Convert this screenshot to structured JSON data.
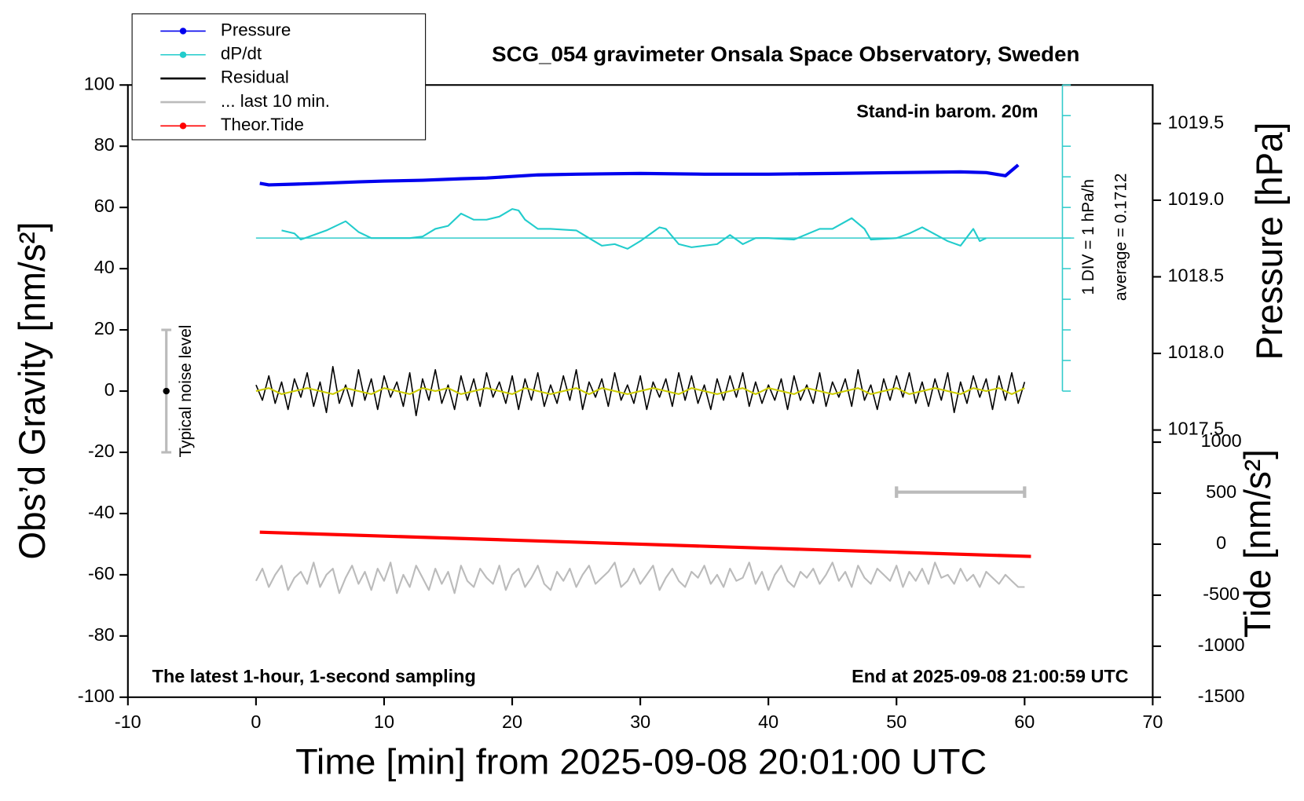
{
  "chart_data": {
    "type": "line",
    "title": "SCG_054 gravimeter Onsala Space Observatory, Sweden",
    "xlabel": "Time [min] from 2025-09-08 20:01:00 UTC",
    "ylabel": "Obs’d Gravity [nm/s²]",
    "y2label": "Pressure [hPa]",
    "y3label": "Tide [nm/s²]",
    "annotations": [
      "Stand-in barom. 20m",
      "1 DIV = 1 hPa/h",
      "average = 0.1712",
      "The latest 1-hour, 1-second sampling",
      "End at 2025-09-08 21:00:59 UTC"
    ],
    "xlim": [
      -10,
      70
    ],
    "xticks": [
      -10,
      0,
      10,
      20,
      30,
      40,
      50,
      60,
      70
    ],
    "ylim": [
      -100,
      100
    ],
    "yticks": [
      -100,
      -80,
      -60,
      -40,
      -20,
      0,
      20,
      40,
      60,
      80,
      100
    ],
    "y2lim": [
      1015.756,
      1019.752
    ],
    "y2ticks": [
      1017.5,
      {
        "value": 1018,
        "label": "1018.0"
      },
      1018.5,
      {
        "value": 1019,
        "label": "1019.0"
      },
      1019.5
    ],
    "y3lim": [
      -1500,
      4501
    ],
    "y3ticks": [
      -1500,
      -1000,
      -500,
      0,
      500,
      1000
    ],
    "y4lim": [
      -5,
      5
    ],
    "y4ticks": [
      -5,
      -4,
      -3,
      -2,
      -1,
      0,
      1,
      2,
      3,
      4,
      5
    ],
    "y4color": "#33cccc",
    "noise_bar": {
      "label": "Typical noise level",
      "x": -7,
      "value": 0,
      "error": 20,
      "color": "#bbbbbb"
    },
    "scale_bar": {
      "x": [
        50,
        60
      ],
      "value": -33,
      "color": "#bbbbbb"
    },
    "x": [
      0,
      0.5,
      1,
      1.5,
      2,
      2.5,
      3,
      3.5,
      4,
      4.5,
      5,
      5.5,
      6,
      6.5,
      7,
      7.5,
      8,
      8.5,
      9,
      9.5,
      10,
      10.5,
      11,
      11.5,
      12,
      12.5,
      13,
      13.5,
      14,
      14.5,
      15,
      15.5,
      16,
      16.5,
      17,
      17.5,
      18,
      18.5,
      19,
      19.5,
      20,
      20.5,
      21,
      21.5,
      22,
      22.5,
      23,
      23.5,
      24,
      24.5,
      25,
      25.5,
      26,
      26.5,
      27,
      27.5,
      28,
      28.5,
      29,
      29.5,
      30,
      30.5,
      31,
      31.5,
      32,
      32.5,
      33,
      33.5,
      34,
      34.5,
      35,
      35.5,
      36,
      36.5,
      37,
      37.5,
      38,
      38.5,
      39,
      39.5,
      40,
      40.5,
      41,
      41.5,
      42,
      42.5,
      43,
      43.5,
      44,
      44.5,
      45,
      45.5,
      46,
      46.5,
      47,
      47.5,
      48,
      48.5,
      49,
      49.5,
      50,
      50.5,
      51,
      51.5,
      52,
      52.5,
      53,
      53.5,
      54,
      54.5,
      55,
      55.5,
      56,
      56.5,
      57,
      57.5,
      58,
      58.5,
      59,
      59.5,
      60
    ],
    "series": [
      {
        "name": "Pressure",
        "color": "#0000ee",
        "axis": "y2",
        "width": 4,
        "marker": true,
        "x": [
          0.3,
          1,
          3,
          5,
          8,
          10,
          13,
          16,
          18,
          20,
          22,
          25,
          30,
          35,
          40,
          45,
          50,
          55,
          57,
          58.5,
          59.5
        ],
        "values": [
          1019.11,
          1019.1,
          1019.105,
          1019.11,
          1019.12,
          1019.125,
          1019.13,
          1019.14,
          1019.145,
          1019.155,
          1019.165,
          1019.17,
          1019.175,
          1019.17,
          1019.17,
          1019.175,
          1019.18,
          1019.185,
          1019.18,
          1019.16,
          1019.23
        ]
      },
      {
        "name": "dP/dt",
        "color": "#22cccc",
        "axis": "y4",
        "width": 2,
        "marker": true,
        "x": [
          2,
          3,
          3.5,
          4.5,
          5.5,
          7,
          8,
          9,
          10,
          12,
          13,
          14,
          15,
          16,
          17,
          18,
          19,
          20,
          20.5,
          21,
          22,
          23,
          25,
          26,
          27,
          28,
          29,
          30,
          31,
          31.5,
          32,
          33,
          34,
          35,
          36,
          37,
          38,
          39,
          40,
          42,
          44,
          45,
          46.5,
          47.5,
          48,
          50,
          51,
          52,
          54,
          55,
          56,
          56.5,
          57
        ],
        "values": [
          0.25,
          0.15,
          -0.05,
          0.1,
          0.25,
          0.55,
          0.2,
          0,
          0,
          0,
          0.05,
          0.3,
          0.4,
          0.8,
          0.6,
          0.6,
          0.7,
          0.95,
          0.9,
          0.6,
          0.3,
          0.3,
          0.25,
          0,
          -0.25,
          -0.2,
          -0.35,
          -0.1,
          0.2,
          0.35,
          0.3,
          -0.2,
          -0.3,
          -0.25,
          -0.2,
          0.1,
          -0.2,
          0,
          0,
          -0.05,
          0.3,
          0.3,
          0.65,
          0.3,
          -0.05,
          0,
          0.15,
          0.35,
          -0.1,
          -0.25,
          0.3,
          -0.1,
          0
        ]
      },
      {
        "name": "Residual",
        "color": "#000000",
        "axis": "y",
        "width": 1.5,
        "values": [
          2,
          -3,
          5,
          -4,
          3,
          -6,
          4,
          -2,
          6,
          -5,
          3,
          -7,
          8,
          -4,
          2,
          -5,
          7,
          -3,
          4,
          -6,
          5,
          -2,
          3,
          -5,
          6,
          -8,
          4,
          -3,
          7,
          -4,
          2,
          -6,
          5,
          -3,
          4,
          -5,
          6,
          -2,
          3,
          -4,
          5,
          -6,
          4,
          -3,
          6,
          -5,
          2,
          -4,
          5,
          -3,
          7,
          -6,
          3,
          -2,
          4,
          -5,
          6,
          -3,
          2,
          -4,
          5,
          -6,
          3,
          -2,
          4,
          -5,
          6,
          -3,
          5,
          -4,
          2,
          -6,
          4,
          -3,
          5,
          -2,
          6,
          -5,
          3,
          -4,
          2,
          -3,
          4,
          -6,
          5,
          -3,
          2,
          -4,
          6,
          -5,
          3,
          -2,
          4,
          -5,
          7,
          -3,
          2,
          -6,
          4,
          -3,
          5,
          -2,
          6,
          -4,
          3,
          -5,
          4,
          -3,
          6,
          -7,
          3,
          -4,
          5,
          -2,
          4,
          -6,
          5,
          -3,
          6,
          -4,
          3
        ]
      },
      {
        "name": "... last 10 min.",
        "color": "#bbbbbb",
        "axis": "y",
        "width": 2,
        "values": [
          -62,
          -58,
          -64,
          -60,
          -57,
          -65,
          -61,
          -59,
          -63,
          -56,
          -64,
          -60,
          -58,
          -66,
          -61,
          -57,
          -63,
          -59,
          -65,
          -58,
          -62,
          -56,
          -66,
          -60,
          -64,
          -57,
          -61,
          -65,
          -58,
          -63,
          -59,
          -66,
          -57,
          -62,
          -64,
          -58,
          -61,
          -63,
          -57,
          -65,
          -60,
          -58,
          -64,
          -61,
          -57,
          -63,
          -65,
          -59,
          -62,
          -58,
          -64,
          -60,
          -57,
          -63,
          -61,
          -59,
          -56,
          -64,
          -62,
          -58,
          -63,
          -60,
          -57,
          -65,
          -61,
          -58,
          -62,
          -64,
          -59,
          -61,
          -57,
          -63,
          -60,
          -64,
          -58,
          -62,
          -61,
          -56,
          -63,
          -59,
          -65,
          -60,
          -57,
          -62,
          -64,
          -59,
          -61,
          -58,
          -63,
          -60,
          -56,
          -62,
          -59,
          -64,
          -57,
          -61,
          -63,
          -58,
          -60,
          -62,
          -57,
          -64,
          -59,
          -62,
          -58,
          -63,
          -56,
          -61,
          -60,
          -63,
          -58,
          -62,
          -60,
          -64,
          -59,
          -61,
          -63,
          -60,
          -62,
          -64,
          -64
        ]
      },
      {
        "name": "Theor.Tide",
        "color": "#ff0000",
        "axis": "y3",
        "width": 4,
        "marker": true,
        "x": [
          0.3,
          10,
          20,
          30,
          40,
          50,
          60.5
        ],
        "values": [
          118,
          79,
          40,
          0,
          -40,
          -79,
          -120
        ]
      },
      {
        "color": "#cccc00",
        "axis": "y",
        "width": 2,
        "x": [
          0,
          1,
          2,
          3,
          4,
          5,
          6,
          7,
          8,
          9,
          10,
          11,
          12,
          13,
          14,
          15,
          16,
          17,
          18,
          19,
          20,
          21,
          22,
          23,
          24,
          25,
          26,
          27,
          28,
          29,
          30,
          31,
          32,
          33,
          34,
          35,
          36,
          37,
          38,
          39,
          40,
          41,
          42,
          43,
          44,
          45,
          46,
          47,
          48,
          49,
          50,
          51,
          52,
          53,
          54,
          55,
          56,
          57,
          58,
          59,
          60
        ],
        "values": [
          0,
          1,
          -1,
          0,
          1,
          0,
          -1,
          1,
          0,
          -1,
          1,
          0,
          -1,
          1,
          0,
          1,
          -1,
          0,
          1,
          0,
          -1,
          1,
          0,
          -1,
          0,
          1,
          -1,
          1,
          0,
          -1,
          0,
          1,
          0,
          -1,
          1,
          0,
          -1,
          0,
          1,
          -1,
          1,
          0,
          -1,
          1,
          0,
          -1,
          0,
          1,
          -1,
          0,
          1,
          -1,
          0,
          1,
          0,
          -1,
          1,
          0,
          1,
          -1,
          1
        ]
      }
    ]
  }
}
